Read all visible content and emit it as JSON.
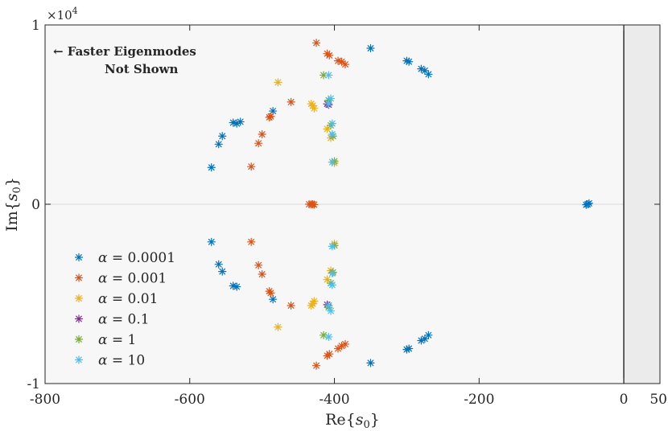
{
  "chart_data": {
    "type": "scatter",
    "title": "",
    "xlabel": "Re{s0}",
    "xlabel_main": "Re{",
    "xlabel_var": "s",
    "xlabel_sub": "0",
    "xlabel_close": "}",
    "ylabel": "Im{s0}",
    "ylabel_main": "Im{",
    "ylabel_var": "s",
    "ylabel_sub": "0",
    "ylabel_close": "}",
    "xlim": [
      -800,
      50
    ],
    "ylim": [
      -10000,
      10000
    ],
    "x_ticks": [
      -800,
      -600,
      -400,
      -200,
      0,
      50
    ],
    "x_tick_labels": [
      "-800",
      "-600",
      "-400",
      "-200",
      "0",
      "50"
    ],
    "y_ticks": [
      -10000,
      0,
      10000
    ],
    "y_tick_labels": [
      "-1",
      "0",
      "1"
    ],
    "y_exponent_base": "×10",
    "y_exponent_power": "4",
    "grid": false,
    "unstable_region_shaded": [
      0,
      50
    ],
    "annotation_line1": "← Faster Eigenmodes",
    "annotation_line2": "Not Shown",
    "legend_location": "bottom-left",
    "series": [
      {
        "name": "α = 0.0001",
        "label_prefix": "α = ",
        "label_value": "0.0001",
        "color": "#0072BD",
        "points": [
          [
            -350,
            8700
          ],
          [
            -300,
            8000
          ],
          [
            -297,
            7950
          ],
          [
            -280,
            7550
          ],
          [
            -275,
            7450
          ],
          [
            -270,
            7250
          ],
          [
            -485,
            5200
          ],
          [
            -530,
            4600
          ],
          [
            -535,
            4500
          ],
          [
            -540,
            4550
          ],
          [
            -555,
            3800
          ],
          [
            -560,
            3350
          ],
          [
            -570,
            2050
          ],
          [
            -50,
            0
          ],
          [
            -48,
            50
          ],
          [
            -52,
            -30
          ],
          [
            -570,
            -2100
          ],
          [
            -560,
            -3350
          ],
          [
            -555,
            -3750
          ],
          [
            -540,
            -4550
          ],
          [
            -535,
            -4600
          ],
          [
            -485,
            -5300
          ],
          [
            -350,
            -8850
          ],
          [
            -300,
            -8100
          ],
          [
            -297,
            -8050
          ],
          [
            -280,
            -7600
          ],
          [
            -275,
            -7500
          ],
          [
            -270,
            -7300
          ]
        ]
      },
      {
        "name": "α = 0.001",
        "label_prefix": "α = ",
        "label_value": "0.001",
        "color": "#D95319",
        "points": [
          [
            -425,
            9000
          ],
          [
            -410,
            8400
          ],
          [
            -407,
            8300
          ],
          [
            -395,
            8000
          ],
          [
            -390,
            7950
          ],
          [
            -385,
            7800
          ],
          [
            -460,
            5700
          ],
          [
            -490,
            4850
          ],
          [
            -488,
            4900
          ],
          [
            -500,
            3900
          ],
          [
            -505,
            3400
          ],
          [
            -515,
            2100
          ],
          [
            -435,
            0
          ],
          [
            -432,
            0
          ],
          [
            -430,
            0
          ],
          [
            -428,
            -20
          ],
          [
            -515,
            -2100
          ],
          [
            -505,
            -3400
          ],
          [
            -500,
            -3900
          ],
          [
            -490,
            -4850
          ],
          [
            -488,
            -4950
          ],
          [
            -460,
            -5650
          ],
          [
            -425,
            -9000
          ],
          [
            -410,
            -8450
          ],
          [
            -407,
            -8350
          ],
          [
            -395,
            -8050
          ],
          [
            -390,
            -7900
          ],
          [
            -385,
            -7800
          ]
        ]
      },
      {
        "name": "α = 0.01",
        "label_prefix": "α = ",
        "label_value": "0.01",
        "color": "#EDB120",
        "points": [
          [
            -478,
            6800
          ],
          [
            -432,
            5600
          ],
          [
            -430,
            5500
          ],
          [
            -428,
            5350
          ],
          [
            -410,
            4200
          ],
          [
            -405,
            3700
          ],
          [
            -400,
            2300
          ],
          [
            -400,
            -2200
          ],
          [
            -405,
            -3700
          ],
          [
            -410,
            -4200
          ],
          [
            -428,
            -5400
          ],
          [
            -430,
            -5550
          ],
          [
            -432,
            -5650
          ],
          [
            -478,
            -6850
          ]
        ]
      },
      {
        "name": "α = 0.1",
        "label_prefix": "α = ",
        "label_value": "0.1",
        "color": "#7E2F8E",
        "points": [
          [
            -410,
            5600
          ],
          [
            -408,
            5550
          ],
          [
            -410,
            -5600
          ],
          [
            -408,
            -5650
          ]
        ]
      },
      {
        "name": "α = 1",
        "label_prefix": "α = ",
        "label_value": "1",
        "color": "#77AC30",
        "points": [
          [
            -415,
            7200
          ],
          [
            -408,
            5800
          ],
          [
            -405,
            4400
          ],
          [
            -402,
            3800
          ],
          [
            -400,
            2400
          ],
          [
            -400,
            -2300
          ],
          [
            -402,
            -3800
          ],
          [
            -405,
            -4400
          ],
          [
            -408,
            -5750
          ],
          [
            -415,
            -7300
          ]
        ]
      },
      {
        "name": "α = 10",
        "label_prefix": "α = ",
        "label_value": "10",
        "color": "#4DBEEE",
        "points": [
          [
            -408,
            7200
          ],
          [
            -405,
            5900
          ],
          [
            -408,
            5600
          ],
          [
            -403,
            4500
          ],
          [
            -403,
            3900
          ],
          [
            -403,
            2350
          ],
          [
            -403,
            -2350
          ],
          [
            -403,
            -3850
          ],
          [
            -403,
            -4500
          ],
          [
            -408,
            -5650
          ],
          [
            -405,
            -5950
          ],
          [
            -408,
            -7400
          ]
        ]
      }
    ]
  }
}
